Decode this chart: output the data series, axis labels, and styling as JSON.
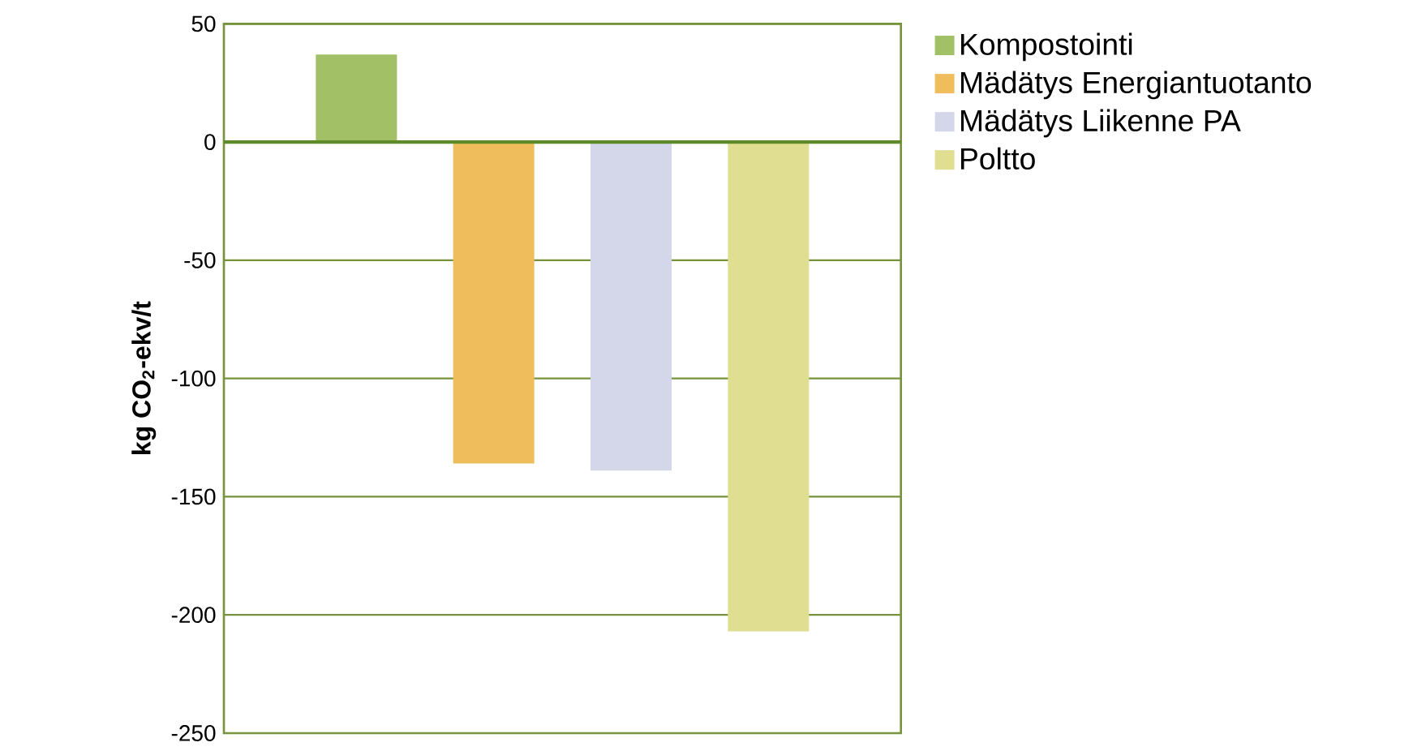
{
  "chart_data": {
    "type": "bar",
    "ylabel": "kg CO$_{2}$-ekv/t",
    "categories": [
      null
    ],
    "series": [
      {
        "name": "Kompostointi",
        "color": "#a2c167",
        "values": [
          37
        ]
      },
      {
        "name": "Mädätys Energiantuotanto",
        "color": "#efbd5c",
        "values": [
          -136
        ]
      },
      {
        "name": "Mädätys Liikenne PA",
        "color": "#d4d6ea",
        "values": [
          -139
        ]
      },
      {
        "name": "Poltto",
        "color": "#e0de90",
        "values": [
          -207
        ]
      }
    ],
    "ylim": [
      -250,
      50
    ],
    "yticks": [
      -250,
      -200,
      -150,
      -100,
      -50,
      0,
      50
    ],
    "ref_lines": [
      {
        "axis": "y",
        "value": 0,
        "color": "#5e8a2a"
      }
    ],
    "grid": "y",
    "legend": "right"
  }
}
